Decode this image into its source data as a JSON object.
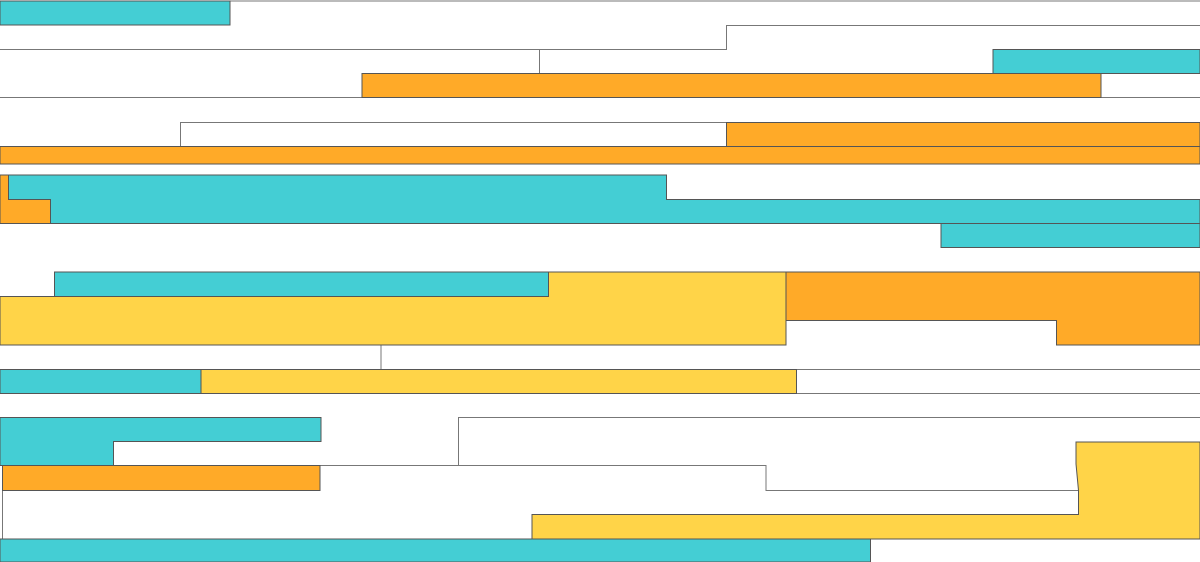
{
  "palette": {
    "background": "#ffffff",
    "teal": "#44ced4",
    "orange": "#ffaa28",
    "yellow": "#ffd448",
    "outline": "#555555",
    "line": "#777777"
  }
}
